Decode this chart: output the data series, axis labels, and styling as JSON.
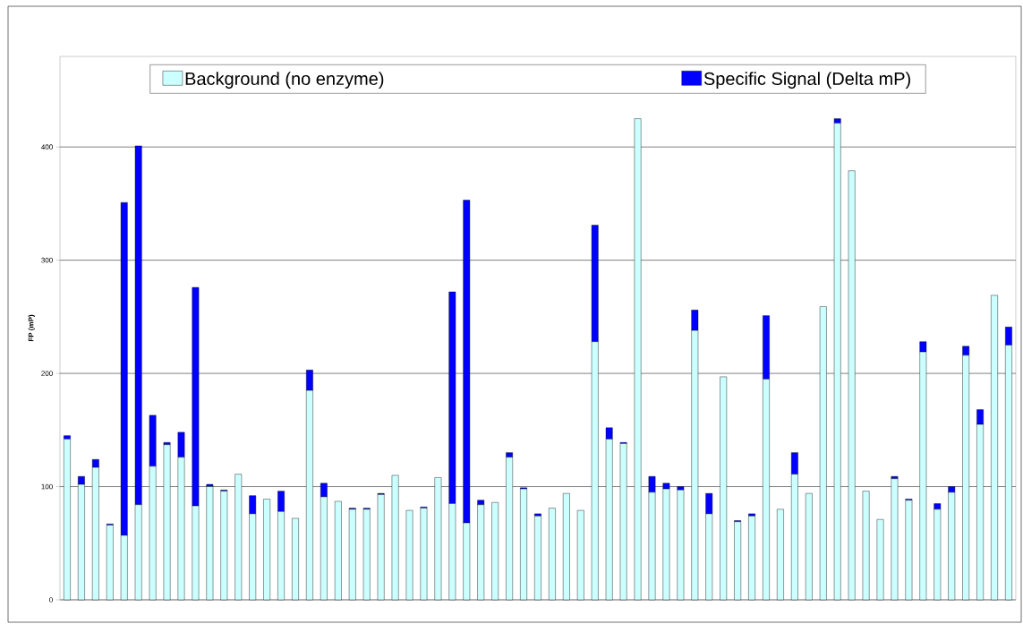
{
  "chart_data": {
    "type": "bar",
    "stacked": true,
    "ylabel": "FP (mP)",
    "ylim": [
      0,
      480
    ],
    "yticks": [
      0,
      100,
      200,
      300,
      400
    ],
    "grid": "y",
    "legend": "top",
    "categories": [
      null,
      null,
      null,
      null,
      null,
      null,
      null,
      null,
      null,
      null,
      null,
      null,
      null,
      null,
      null,
      null,
      null,
      null,
      null,
      null,
      null,
      null,
      null,
      null,
      null,
      null,
      null,
      null,
      null,
      null,
      null,
      null,
      null,
      null,
      null,
      null,
      null,
      null,
      null,
      null,
      null,
      null,
      null,
      null,
      null,
      null,
      null,
      null,
      null,
      null,
      null,
      null,
      null,
      null,
      null,
      null,
      null,
      null,
      null,
      null,
      null,
      null,
      null,
      null,
      null,
      null,
      null
    ],
    "series": [
      {
        "name": "Background (no enzyme)",
        "color": "#ccffff",
        "values": [
          142,
          102,
          117,
          66,
          57,
          84,
          118,
          137,
          126,
          83,
          100,
          96,
          111,
          76,
          89,
          78,
          72,
          185,
          91,
          87,
          80,
          80,
          93,
          110,
          79,
          81,
          108,
          85,
          68,
          84,
          86,
          126,
          98,
          74,
          81,
          94,
          79,
          228,
          142,
          138,
          425,
          95,
          98,
          97,
          238,
          76,
          197,
          69,
          74,
          195,
          80,
          111,
          94,
          259,
          421,
          379,
          96,
          71,
          107,
          88,
          219,
          80,
          95,
          216,
          155,
          269,
          225
        ]
      },
      {
        "name": "Specific Signal (Delta mP)",
        "color": "#0000ff",
        "values": [
          3,
          7,
          7,
          1,
          294,
          317,
          45,
          2,
          22,
          193,
          2,
          1,
          0,
          16,
          0,
          18,
          0,
          18,
          12,
          0,
          1,
          1,
          1,
          0,
          0,
          1,
          0,
          187,
          285,
          4,
          0,
          4,
          1,
          2,
          0,
          0,
          0,
          103,
          10,
          1,
          0,
          14,
          5,
          3,
          18,
          18,
          0,
          1,
          2,
          56,
          0,
          19,
          0,
          0,
          4,
          0,
          0,
          0,
          2,
          1,
          9,
          5,
          5,
          8,
          13,
          0,
          16
        ]
      }
    ]
  }
}
